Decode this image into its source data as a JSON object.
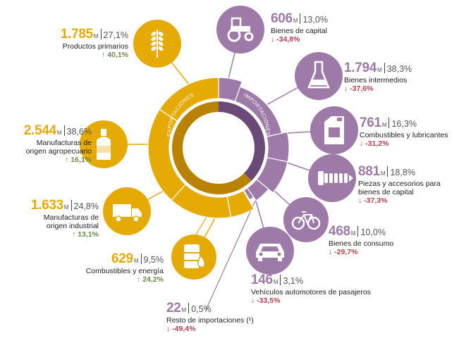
{
  "chart_data": {
    "type": "pie",
    "center_labels": {
      "exports": "EXPORTACIONES",
      "imports": "IMPORTACIONES"
    },
    "colors": {
      "exports": "#e6aa05",
      "exports_dark": "#b98200",
      "imports": "#9e7aa8",
      "imports_dark": "#6b4a7a",
      "up": "#6a8b4a",
      "down": "#b2404a"
    },
    "exports": [
      {
        "id": "productos-primarios",
        "value": "1.785",
        "unit": "M",
        "share": "27,1%",
        "share_value": 27.1,
        "label": "Productos primarios",
        "change": "40,1%",
        "direction": "up",
        "icon": "wheat-icon"
      },
      {
        "id": "moa",
        "value": "2.544",
        "unit": "M",
        "share": "38,6%",
        "share_value": 38.6,
        "label": "Manufacturas de origen agropecuario",
        "change": "16,1%",
        "direction": "up",
        "icon": "bottle-icon"
      },
      {
        "id": "moi",
        "value": "1.633",
        "unit": "M",
        "share": "24,8%",
        "share_value": 24.8,
        "label": "Manufacturas de origen industrial",
        "change": "13,1%",
        "direction": "up",
        "icon": "truck-icon"
      },
      {
        "id": "combustibles-energia",
        "value": "629",
        "unit": "M",
        "share": "9,5%",
        "share_value": 9.5,
        "label": "Combustibles y energía",
        "change": "24,2%",
        "direction": "up",
        "icon": "oil-barrel-icon"
      }
    ],
    "imports": [
      {
        "id": "bienes-capital",
        "value": "606",
        "unit": "M",
        "share": "13,0%",
        "share_value": 13.0,
        "label": "Bienes de capital",
        "change": "-34,8%",
        "direction": "down",
        "icon": "tractor-icon"
      },
      {
        "id": "bienes-intermedios",
        "value": "1.794",
        "unit": "M",
        "share": "38,3%",
        "share_value": 38.3,
        "label": "Bienes intermedios",
        "change": "-37,6%",
        "direction": "down",
        "icon": "flask-icon"
      },
      {
        "id": "combustibles-lubricantes",
        "value": "761",
        "unit": "M",
        "share": "16,3%",
        "share_value": 16.3,
        "label": "Combustibles y lubricantes",
        "change": "-31,2%",
        "direction": "down",
        "icon": "jerrycan-icon"
      },
      {
        "id": "piezas-accesorios",
        "value": "881",
        "unit": "M",
        "share": "18,8%",
        "share_value": 18.8,
        "label": "Piezas y accesorios para bienes de capital",
        "change": "-37,3%",
        "direction": "down",
        "icon": "screw-icon"
      },
      {
        "id": "bienes-consumo",
        "value": "468",
        "unit": "M",
        "share": "10,0%",
        "share_value": 10.0,
        "label": "Bienes de consumo",
        "change": "-29,7%",
        "direction": "down",
        "icon": "bicycle-icon"
      },
      {
        "id": "vehiculos",
        "value": "146",
        "unit": "M",
        "share": "3,1%",
        "share_value": 3.1,
        "label": "Vehículos automotores de pasajeros",
        "change": "-33,5%",
        "direction": "down",
        "icon": "car-icon"
      },
      {
        "id": "resto",
        "value": "22",
        "unit": "M",
        "share": "0,5%",
        "share_value": 0.5,
        "label": "Resto de importaciones (¹)",
        "change": "-49,4%",
        "direction": "down",
        "icon": ""
      }
    ]
  }
}
